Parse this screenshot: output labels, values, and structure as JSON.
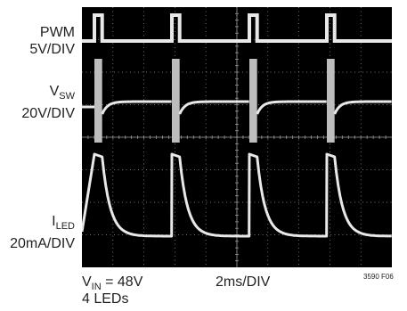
{
  "chart_data": {
    "type": "line",
    "title": "",
    "channels": [
      {
        "name_main": "PWM",
        "name_sub": "",
        "scale": "5V/DIV"
      },
      {
        "name_main": "V",
        "name_sub": "SW",
        "scale": "20V/DIV"
      },
      {
        "name_main": "I",
        "name_sub": "LED",
        "scale": "20mA/DIV"
      }
    ],
    "grid": true,
    "x_divisions": 10,
    "y_divisions": 8,
    "time_per_div_ms": 2,
    "pwm_period_ms": 5,
    "pwm_duty_pct": 10,
    "colors": {
      "screen": "#000000",
      "trace": "#e8e8e8",
      "grid": "#9a9a9a"
    }
  },
  "captions": {
    "vin_main": "V",
    "vin_sub": "IN",
    "vin_value": " = 48V",
    "leds": "4 LEDs",
    "timebase": "2ms/DIV",
    "figure_id": "3590 F06"
  }
}
